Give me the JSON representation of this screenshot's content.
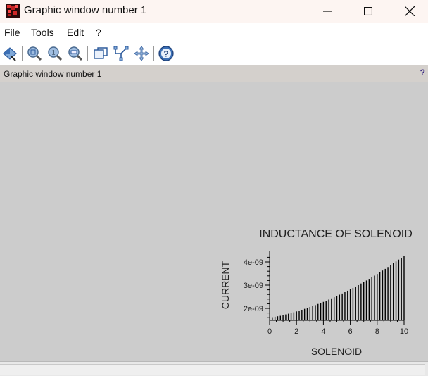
{
  "window": {
    "title": "Graphic window number 1"
  },
  "menu": {
    "items": [
      "File",
      "Tools",
      "Edit",
      "?"
    ]
  },
  "toolbar": {
    "buttons": [
      "select-figure",
      "zoom",
      "zoom-in",
      "zoom-out",
      "rotate-2d",
      "datatip",
      "pan",
      "help"
    ]
  },
  "infobar": {
    "text": "Graphic window number 1",
    "help": "?"
  },
  "chart_data": {
    "type": "bar",
    "title": "INDUCTANCE OF SOLENOID",
    "xlabel": "SOLENOID",
    "ylabel": "CURRENT",
    "xlim": [
      0,
      10
    ],
    "ylim": [
      1.5e-09,
      4.25e-09
    ],
    "xticks": [
      "0",
      "2",
      "4",
      "6",
      "8",
      "10"
    ],
    "yticks": [
      "2e-09",
      "3e-09",
      "4e-09"
    ],
    "x": [
      0.2,
      0.4,
      0.6,
      0.8,
      1.0,
      1.2,
      1.4,
      1.6,
      1.8,
      2.0,
      2.2,
      2.4,
      2.6,
      2.8,
      3.0,
      3.2,
      3.4,
      3.6,
      3.8,
      4.0,
      4.2,
      4.4,
      4.6,
      4.8,
      5.0,
      5.2,
      5.4,
      5.6,
      5.8,
      6.0,
      6.2,
      6.4,
      6.6,
      6.8,
      7.0,
      7.2,
      7.4,
      7.6,
      7.8,
      8.0,
      8.2,
      8.4,
      8.6,
      8.8,
      9.0,
      9.2,
      9.4,
      9.6,
      9.8,
      10.0
    ],
    "values": [
      1.62e-09,
      1.64e-09,
      1.66e-09,
      1.68e-09,
      1.71e-09,
      1.74e-09,
      1.77e-09,
      1.8e-09,
      1.83e-09,
      1.87e-09,
      1.9e-09,
      1.94e-09,
      1.98e-09,
      2.02e-09,
      2.06e-09,
      2.1e-09,
      2.14e-09,
      2.19e-09,
      2.23e-09,
      2.28e-09,
      2.33e-09,
      2.38e-09,
      2.43e-09,
      2.48e-09,
      2.53e-09,
      2.59e-09,
      2.64e-09,
      2.7e-09,
      2.76e-09,
      2.82e-09,
      2.88e-09,
      2.94e-09,
      3e-09,
      3.07e-09,
      3.13e-09,
      3.2e-09,
      3.27e-09,
      3.34e-09,
      3.41e-09,
      3.48e-09,
      3.55e-09,
      3.63e-09,
      3.7e-09,
      3.78e-09,
      3.86e-09,
      3.94e-09,
      4.02e-09,
      4.1e-09,
      4.18e-09,
      4.26e-09
    ]
  },
  "colors": {
    "plot_bg": "#cccccc",
    "bars": "#000000",
    "axes": "#000000",
    "text": "#222222"
  }
}
